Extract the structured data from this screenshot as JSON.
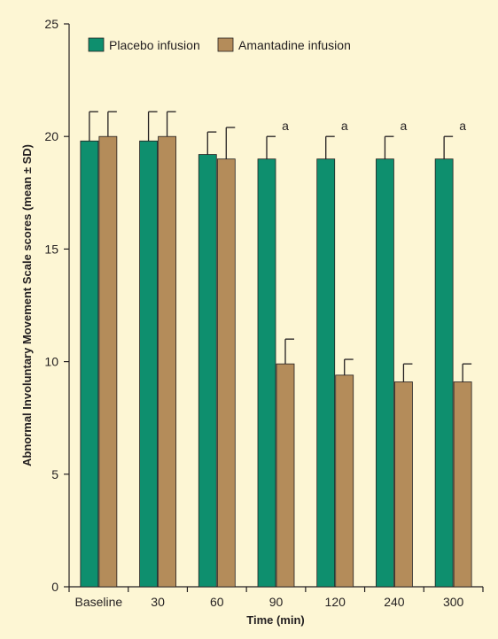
{
  "chart_data": {
    "type": "bar",
    "title": "",
    "xlabel": "Time (min)",
    "ylabel": "Abnormal Involuntary Movement Scale scores (mean ± SD)",
    "ylim": [
      0,
      25
    ],
    "yticks": [
      0,
      5,
      10,
      15,
      20,
      25
    ],
    "categories": [
      "Baseline",
      "30",
      "60",
      "90",
      "120",
      "240",
      "300"
    ],
    "series": [
      {
        "name": "Placebo infusion",
        "color": "#0e8f6e",
        "values": [
          19.8,
          19.8,
          19.2,
          19.0,
          19.0,
          19.0,
          19.0
        ],
        "error": [
          1.3,
          1.3,
          1.0,
          1.0,
          1.0,
          1.0,
          1.0
        ]
      },
      {
        "name": "Amantadine infusion",
        "color": "#b48c5a",
        "values": [
          20.0,
          20.0,
          19.0,
          9.9,
          9.4,
          9.1,
          9.1
        ],
        "error": [
          1.1,
          1.1,
          1.4,
          1.1,
          0.7,
          0.8,
          0.8
        ]
      }
    ],
    "annotations": [
      {
        "category": "90",
        "text": "a"
      },
      {
        "category": "120",
        "text": "a"
      },
      {
        "category": "240",
        "text": "a"
      },
      {
        "category": "300",
        "text": "a"
      }
    ],
    "legend_position": "top-left",
    "grid": false
  }
}
